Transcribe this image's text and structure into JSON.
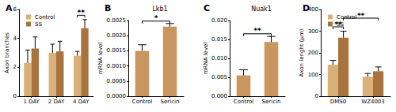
{
  "chart_data": [
    {
      "type": "bar",
      "panel_label": "A",
      "y_label": "Axon branches",
      "categories": [
        "1 DAY",
        "2 DAY",
        "4 DAY"
      ],
      "series": [
        {
          "name": "Control",
          "color": "#d7b07a",
          "values": [
            2.3,
            3.0,
            2.8
          ],
          "errors": [
            0.9,
            0.6,
            0.3
          ]
        },
        {
          "name": "SS",
          "color": "#a8733c",
          "values": [
            3.3,
            3.1,
            4.7
          ],
          "errors": [
            0.8,
            0.7,
            0.6
          ]
        }
      ],
      "ylim": [
        0,
        6
      ],
      "yticks": [
        0,
        2,
        4,
        6
      ],
      "grid": false,
      "legend": "upper left",
      "annotations": [
        {
          "text": "**",
          "from": {
            "category": "4 DAY",
            "series": "Control"
          },
          "to": {
            "category": "4 DAY",
            "series": "SS"
          },
          "y": 5.6
        }
      ]
    },
    {
      "type": "bar",
      "panel_label": "B",
      "title": "Lkb1",
      "y_label": "mRNA level",
      "categories": [
        "Control",
        "Sericin"
      ],
      "values": [
        0.0015,
        0.0023
      ],
      "errors": [
        0.0002,
        0.0001
      ],
      "color": "#c99660",
      "ylim": [
        0,
        0.0025
      ],
      "yticks": [
        {
          "value": 0,
          "label": "0.0000"
        },
        {
          "value": 0.0005,
          "label": "0.0005"
        },
        {
          "value": 0.001,
          "label": "0.0010"
        },
        {
          "value": 0.0015,
          "label": "0.0015"
        },
        {
          "value": 0.002,
          "label": "0.0020"
        },
        {
          "value": 0.0025,
          "label": "0.0025"
        }
      ],
      "grid": false,
      "annotations": [
        {
          "text": "*",
          "from": {
            "category": "Control"
          },
          "to": {
            "category": "Sericin"
          },
          "y": 0.00248
        }
      ]
    },
    {
      "type": "bar",
      "panel_label": "C",
      "title": "Nuak1",
      "y_label": "mRNA level",
      "categories": [
        "Control",
        "Sericin"
      ],
      "values": [
        0.0055,
        0.0143
      ],
      "errors": [
        0.0015,
        0.0015
      ],
      "color": "#c99660",
      "ylim": [
        0,
        0.02
      ],
      "yticks": [
        {
          "value": 0,
          "label": "0.000"
        },
        {
          "value": 0.005,
          "label": "0.005"
        },
        {
          "value": 0.01,
          "label": "0.010"
        },
        {
          "value": 0.015,
          "label": "0.015"
        },
        {
          "value": 0.02,
          "label": "0.020"
        }
      ],
      "grid": false,
      "annotations": [
        {
          "text": "**",
          "from": {
            "category": "Control"
          },
          "to": {
            "category": "Sericin"
          },
          "y": 0.0165
        }
      ]
    },
    {
      "type": "bar",
      "panel_label": "D",
      "y_label": "Axon lenght (μm)",
      "categories": [
        "DMS0",
        "WZ4003"
      ],
      "series": [
        {
          "name": "Control",
          "color": "#d7b07a",
          "values": [
            145,
            90
          ],
          "errors": [
            20,
            15
          ]
        },
        {
          "name": "SS",
          "color": "#a8733c",
          "values": [
            270,
            115
          ],
          "errors": [
            30,
            20
          ]
        }
      ],
      "ylim": [
        0,
        400
      ],
      "yticks": [
        0,
        100,
        200,
        300,
        400
      ],
      "grid": false,
      "legend": "upper left",
      "annotations": [
        {
          "text": "**",
          "from": {
            "category": "DMS0",
            "series": "Control"
          },
          "to": {
            "category": "DMS0",
            "series": "SS"
          },
          "y": 320
        },
        {
          "text": "**",
          "from": {
            "category": "DMS0",
            "series": "SS"
          },
          "to": {
            "category": "WZ4003",
            "series": "SS"
          },
          "y": 360
        }
      ]
    }
  ]
}
